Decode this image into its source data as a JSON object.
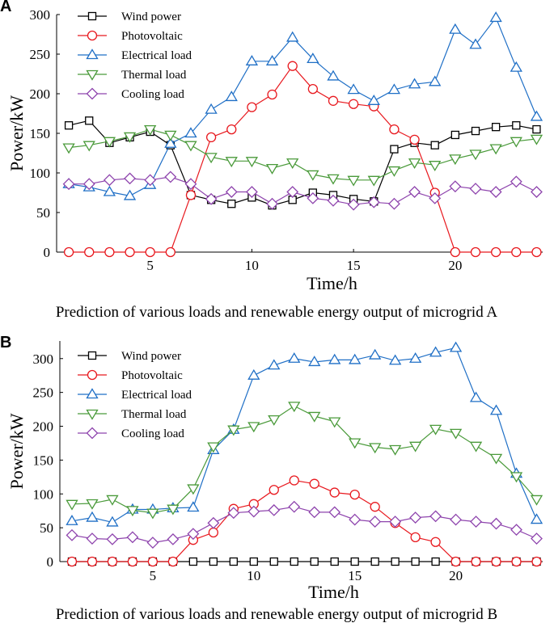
{
  "chart_data": [
    {
      "panel": "A",
      "type": "line",
      "title": "Prediction of various loads and renewable energy output of microgrid A",
      "xlabel": "Time/h",
      "ylabel": "Power/kW",
      "xlim": [
        1,
        24
      ],
      "ylim": [
        0,
        300
      ],
      "xticks": [
        5,
        10,
        15,
        20
      ],
      "yticks": [
        0,
        50,
        100,
        150,
        200,
        250,
        300
      ],
      "x": [
        1,
        2,
        3,
        4,
        5,
        6,
        7,
        8,
        9,
        10,
        11,
        12,
        13,
        14,
        15,
        16,
        17,
        18,
        19,
        20,
        21,
        22,
        23,
        24
      ],
      "legend_position": "top-left",
      "series": [
        {
          "name": "Wind power",
          "color": "#000000",
          "marker": "square",
          "values": [
            160,
            166,
            138,
            145,
            152,
            135,
            72,
            66,
            61,
            69,
            59,
            66,
            75,
            72,
            67,
            64,
            130,
            138,
            135,
            148,
            153,
            158,
            160,
            155
          ]
        },
        {
          "name": "Photovoltaic",
          "color": "#e8191f",
          "marker": "circle",
          "values": [
            0,
            0,
            0,
            0,
            0,
            0,
            72,
            145,
            155,
            183,
            199,
            235,
            206,
            191,
            187,
            184,
            155,
            142,
            75,
            0,
            0,
            0,
            0,
            0
          ]
        },
        {
          "name": "Electrical load",
          "color": "#1f6fc6",
          "marker": "triangle-up",
          "values": [
            86,
            82,
            76,
            71,
            85,
            137,
            150,
            180,
            196,
            241,
            241,
            271,
            244,
            222,
            205,
            191,
            205,
            212,
            215,
            281,
            262,
            296,
            233,
            171
          ]
        },
        {
          "name": "Thermal load",
          "color": "#4a9a3a",
          "marker": "triangle-down",
          "values": [
            132,
            135,
            140,
            146,
            155,
            148,
            135,
            120,
            115,
            115,
            106,
            113,
            98,
            93,
            91,
            91,
            103,
            113,
            110,
            118,
            124,
            131,
            140,
            143
          ]
        },
        {
          "name": "Cooling load",
          "color": "#8e44ad",
          "marker": "diamond",
          "values": [
            86,
            86,
            91,
            93,
            91,
            95,
            86,
            67,
            76,
            76,
            61,
            76,
            68,
            65,
            60,
            63,
            61,
            76,
            68,
            83,
            80,
            76,
            89,
            76
          ]
        }
      ]
    },
    {
      "panel": "B",
      "type": "line",
      "title": "Prediction of various loads and renewable energy output of microgrid B",
      "xlabel": "Time/h",
      "ylabel": "Power/kW",
      "xlim": [
        1,
        24
      ],
      "ylim": [
        0,
        320
      ],
      "xticks": [
        5,
        10,
        15,
        20
      ],
      "yticks": [
        0,
        50,
        100,
        150,
        200,
        250,
        300
      ],
      "x": [
        1,
        2,
        3,
        4,
        5,
        6,
        7,
        8,
        9,
        10,
        11,
        12,
        13,
        14,
        15,
        16,
        17,
        18,
        19,
        20,
        21,
        22,
        23,
        24
      ],
      "legend_position": "top-left",
      "series": [
        {
          "name": "Wind power",
          "color": "#000000",
          "marker": "square",
          "values": [
            0,
            0,
            0,
            0,
            0,
            0,
            0,
            0,
            0,
            0,
            0,
            0,
            0,
            0,
            0,
            0,
            0,
            0,
            0,
            0,
            0,
            0,
            0,
            0
          ]
        },
        {
          "name": "Photovoltaic",
          "color": "#e8191f",
          "marker": "circle",
          "values": [
            0,
            0,
            0,
            0,
            0,
            0,
            32,
            43,
            78,
            85,
            106,
            120,
            115,
            102,
            99,
            81,
            57,
            36,
            29,
            0,
            0,
            0,
            0,
            0
          ]
        },
        {
          "name": "Electrical load",
          "color": "#1f6fc6",
          "marker": "triangle-up",
          "values": [
            60,
            65,
            58,
            77,
            77,
            79,
            80,
            165,
            195,
            275,
            290,
            300,
            295,
            298,
            298,
            305,
            297,
            300,
            309,
            316,
            242,
            223,
            130,
            62
          ]
        },
        {
          "name": "Thermal load",
          "color": "#4a9a3a",
          "marker": "triangle-down",
          "values": [
            85,
            86,
            92,
            76,
            72,
            78,
            108,
            170,
            195,
            200,
            210,
            230,
            215,
            207,
            176,
            169,
            166,
            171,
            196,
            190,
            171,
            153,
            126,
            92
          ]
        },
        {
          "name": "Cooling load",
          "color": "#8e44ad",
          "marker": "diamond",
          "values": [
            39,
            34,
            33,
            36,
            28,
            33,
            41,
            57,
            72,
            74,
            76,
            81,
            73,
            73,
            62,
            59,
            59,
            65,
            67,
            62,
            59,
            56,
            47,
            34
          ]
        }
      ]
    }
  ]
}
